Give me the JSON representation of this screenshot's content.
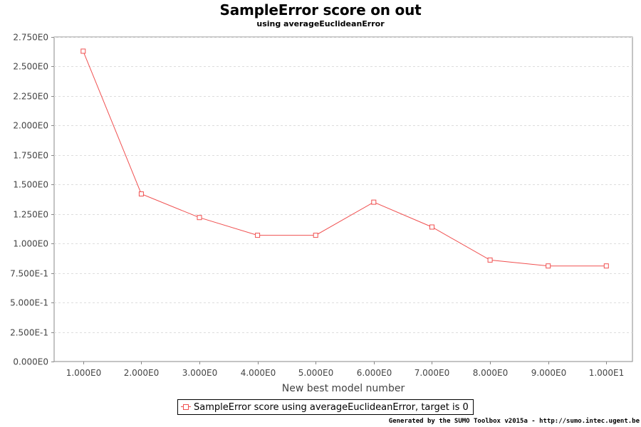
{
  "chart_data": {
    "type": "line",
    "title": "SampleError score on out",
    "subtitle": "using averageEuclideanError",
    "xlabel": "New best model number",
    "ylabel": "",
    "x": [
      1,
      2,
      3,
      4,
      5,
      6,
      7,
      8,
      9,
      10
    ],
    "x_tick_labels": [
      "1.000E0",
      "2.000E0",
      "3.000E0",
      "4.000E0",
      "5.000E0",
      "6.000E0",
      "7.000E0",
      "8.000E0",
      "9.000E0",
      "1.000E1"
    ],
    "y_ticks": [
      0,
      0.25,
      0.5,
      0.75,
      1.0,
      1.25,
      1.5,
      1.75,
      2.0,
      2.25,
      2.5,
      2.75
    ],
    "y_tick_labels": [
      "0.000E0",
      "2.500E-1",
      "5.000E-1",
      "7.500E-1",
      "1.000E0",
      "1.250E0",
      "1.500E0",
      "1.750E0",
      "2.000E0",
      "2.250E0",
      "2.500E0",
      "2.750E0"
    ],
    "xlim": [
      0.5,
      10.45
    ],
    "ylim": [
      0,
      2.75
    ],
    "grid": true,
    "legend_position": "bottom-center",
    "series": [
      {
        "name": "SampleError score using averageEuclideanError, target is 0",
        "values": [
          2.63,
          1.42,
          1.22,
          1.07,
          1.07,
          1.35,
          1.14,
          0.86,
          0.81,
          0.81
        ],
        "color": "#f05050",
        "marker": "square"
      }
    ]
  },
  "credit": "Generated by the SUMO Toolbox v2015a - http://sumo.intec.ugent.be"
}
